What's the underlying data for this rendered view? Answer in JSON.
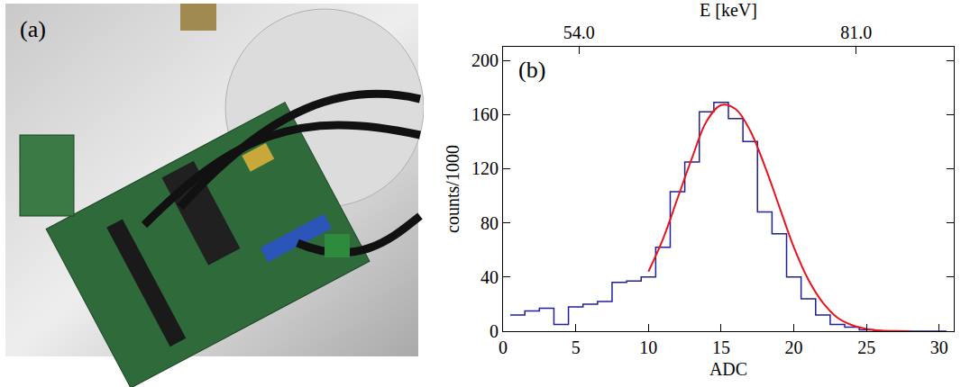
{
  "photo": {
    "label": "(a)"
  },
  "chart_data": {
    "type": "histogram",
    "panel_label": "(b)",
    "x_label": "ADC",
    "y_label": "counts/1000",
    "x2_label": "E [keV]",
    "bins": [
      0.5,
      1.5,
      2.5,
      3.5,
      4.5,
      5.5,
      6.5,
      7.5,
      8.5,
      9.5,
      10.5,
      11.5,
      12.5,
      13.5,
      14.5,
      15.5,
      16.5,
      17.5,
      18.5,
      19.5,
      20.5,
      21.5,
      22.5,
      23.5,
      24.5,
      25.5,
      26.5,
      27.5,
      28.5,
      29.5,
      30.5
    ],
    "values": [
      12,
      15,
      17,
      5,
      18,
      20,
      22,
      36,
      37,
      40,
      62,
      103,
      125,
      162,
      169,
      157,
      140,
      88,
      72,
      40,
      24,
      12,
      5,
      3,
      1,
      0,
      0,
      0,
      0,
      0
    ],
    "color": "#1f1fa0",
    "fit": {
      "color": "#e8131b",
      "x": [
        10,
        11,
        12,
        13,
        14,
        15,
        16,
        17,
        18,
        19,
        20,
        21,
        22,
        23,
        24,
        25,
        26,
        27,
        28
      ],
      "values": [
        44,
        68,
        98,
        128,
        155,
        167,
        164,
        148,
        122,
        92,
        62,
        38,
        21,
        10,
        4.5,
        1.7,
        0.5,
        0.1,
        0
      ]
    },
    "xlim": [
      0,
      31
    ],
    "xticks": [
      0,
      5,
      10,
      15,
      20,
      25,
      30
    ],
    "ylim": [
      0,
      210
    ],
    "yticks": [
      0,
      40,
      80,
      120,
      160,
      200
    ],
    "x2lim": [
      46.6,
      90.5
    ],
    "x2ticks": [
      {
        "value": 54,
        "label": "54.0"
      },
      {
        "value": 81,
        "label": "81.0"
      }
    ],
    "grid": false
  }
}
